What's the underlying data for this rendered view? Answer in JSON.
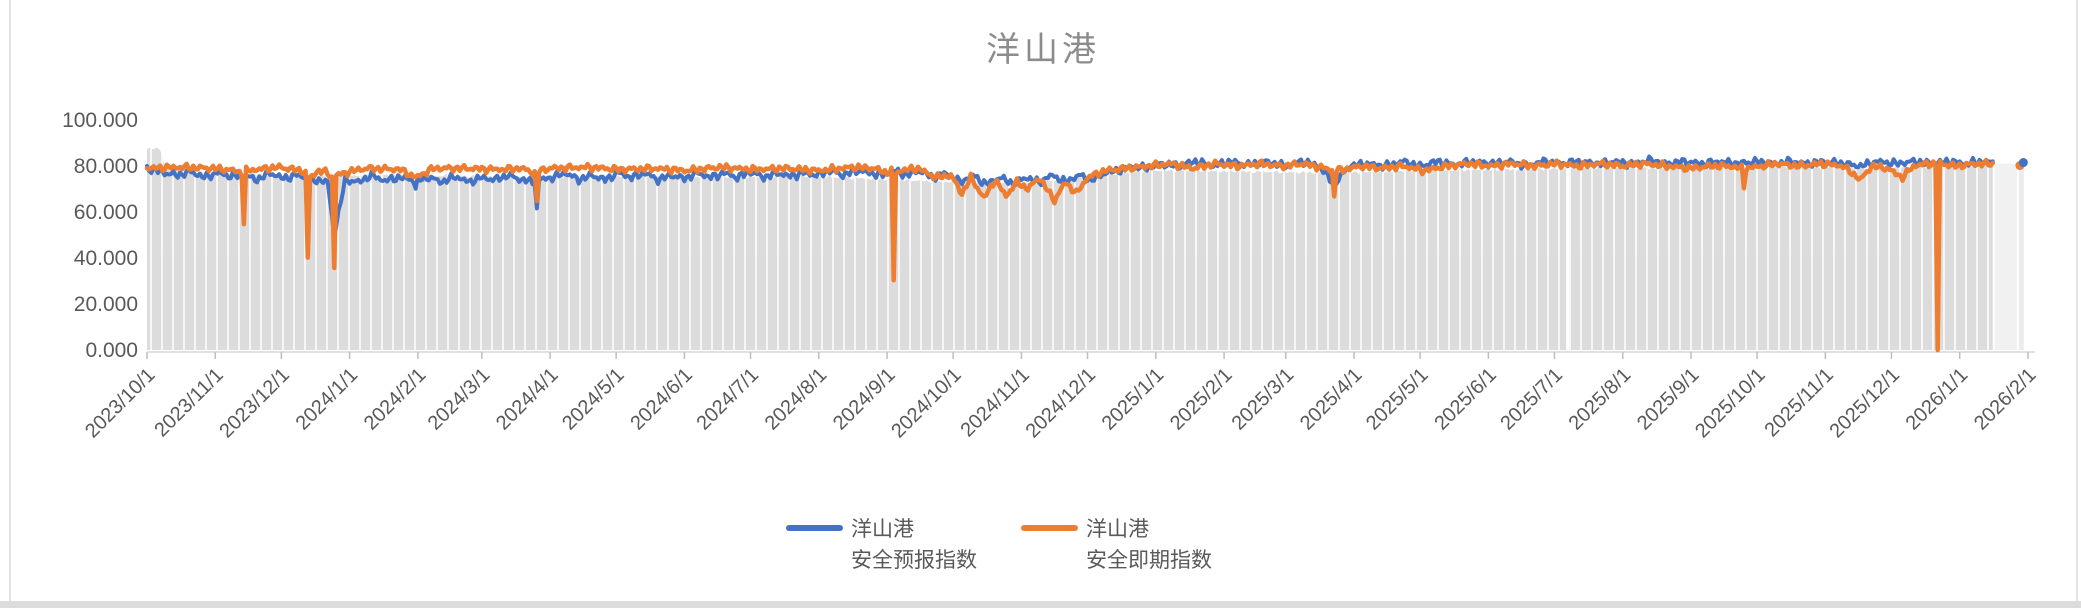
{
  "title": "洋山港",
  "legend": {
    "items": [
      {
        "line1": "洋山港",
        "line2": "安全预报指数",
        "color": "#4472C4"
      },
      {
        "line1": "洋山港",
        "line2": "安全即期指数",
        "color": "#ED7D31"
      }
    ]
  },
  "chart_data": {
    "type": "line",
    "title": "洋山港",
    "xlabel": "",
    "ylabel": "",
    "ylim": [
      0,
      100
    ],
    "grid": "none",
    "legend_position": "bottom",
    "y_axis": {
      "ticks": [
        {
          "label": "100.000",
          "value": 100
        },
        {
          "label": "80.000",
          "value": 80
        },
        {
          "label": "60.000",
          "value": 60
        },
        {
          "label": "40.000",
          "value": 40
        },
        {
          "label": "20.000",
          "value": 20
        },
        {
          "label": "0.000",
          "value": 0
        }
      ]
    },
    "x_axis": {
      "start_date": "2023/10/1",
      "end_date": "2026/2/1",
      "total_days": 854,
      "tick_days": [
        0,
        31,
        61,
        92,
        123,
        152,
        183,
        213,
        244,
        274,
        305,
        336,
        366,
        397,
        427,
        458,
        489,
        517,
        548,
        578,
        609,
        639,
        670,
        701,
        731,
        762,
        792,
        823,
        854
      ],
      "tick_labels": [
        "2023/10/1",
        "2023/11/1",
        "2023/12/1",
        "2024/1/1",
        "2024/2/1",
        "2024/3/1",
        "2024/4/1",
        "2024/5/1",
        "2024/6/1",
        "2024/7/1",
        "2024/8/1",
        "2024/9/1",
        "2024/10/1",
        "2024/11/1",
        "2024/12/1",
        "2025/1/1",
        "2025/2/1",
        "2025/3/1",
        "2025/4/1",
        "2025/5/1",
        "2025/6/1",
        "2025/7/1",
        "2025/8/1",
        "2025/9/1",
        "2025/10/1",
        "2025/11/1",
        "2025/12/1",
        "2026/1/1",
        "2026/2/1"
      ]
    },
    "colors": {
      "forecast_blue": "#4472C4",
      "spot_orange": "#ED7D31",
      "band_gray": "#dcdcdc",
      "band_light": "#f1f1f1",
      "axis_line": "#d6d6d6",
      "tick_mark": "#bfbfbf",
      "label_text": "#595959",
      "title_text": "#8c8c8c"
    },
    "series": [
      {
        "name": "洋山港 安全预报指数",
        "color": "#4472C4",
        "last_day": 838,
        "noise_amp": 1.7,
        "points": [
          [
            0,
            79
          ],
          [
            8,
            77
          ],
          [
            14,
            76
          ],
          [
            20,
            77.5
          ],
          [
            26,
            75
          ],
          [
            32,
            77
          ],
          [
            38,
            75.5
          ],
          [
            44,
            76
          ],
          [
            50,
            74
          ],
          [
            56,
            77
          ],
          [
            62,
            74.5
          ],
          [
            68,
            76
          ],
          [
            72,
            75
          ],
          [
            73,
            47
          ],
          [
            74,
            73
          ],
          [
            78,
            74
          ],
          [
            82,
            73
          ],
          [
            85,
            50
          ],
          [
            90,
            74
          ],
          [
            96,
            73
          ],
          [
            102,
            76
          ],
          [
            108,
            73.5
          ],
          [
            114,
            75
          ],
          [
            121,
            74
          ],
          [
            122,
            70
          ],
          [
            123,
            74
          ],
          [
            128,
            75
          ],
          [
            134,
            73
          ],
          [
            140,
            75.5
          ],
          [
            146,
            73
          ],
          [
            152,
            75
          ],
          [
            158,
            74
          ],
          [
            164,
            76
          ],
          [
            170,
            74
          ],
          [
            176,
            73
          ],
          [
            177,
            61
          ],
          [
            178,
            74
          ],
          [
            184,
            75
          ],
          [
            190,
            77
          ],
          [
            196,
            74
          ],
          [
            202,
            76
          ],
          [
            208,
            74
          ],
          [
            214,
            77
          ],
          [
            220,
            75
          ],
          [
            226,
            77
          ],
          [
            232,
            74
          ],
          [
            238,
            76
          ],
          [
            244,
            74.5
          ],
          [
            250,
            77
          ],
          [
            256,
            75
          ],
          [
            262,
            77
          ],
          [
            268,
            75
          ],
          [
            274,
            77.5
          ],
          [
            280,
            75
          ],
          [
            286,
            77
          ],
          [
            292,
            75.5
          ],
          [
            298,
            77
          ],
          [
            304,
            76
          ],
          [
            310,
            78
          ],
          [
            316,
            76
          ],
          [
            322,
            78
          ],
          [
            328,
            77
          ],
          [
            334,
            76
          ],
          [
            339,
            78
          ],
          [
            345,
            76
          ],
          [
            351,
            78
          ],
          [
            357,
            75
          ],
          [
            363,
            77
          ],
          [
            369,
            73
          ],
          [
            375,
            76
          ],
          [
            381,
            72
          ],
          [
            387,
            75
          ],
          [
            393,
            72.5
          ],
          [
            399,
            75
          ],
          [
            405,
            73
          ],
          [
            411,
            76
          ],
          [
            417,
            73
          ],
          [
            423,
            76
          ],
          [
            429,
            74
          ],
          [
            435,
            77
          ],
          [
            441,
            78
          ],
          [
            447,
            80
          ],
          [
            453,
            79
          ],
          [
            460,
            81
          ],
          [
            468,
            80
          ],
          [
            476,
            82
          ],
          [
            484,
            80
          ],
          [
            492,
            82
          ],
          [
            500,
            80.5
          ],
          [
            508,
            82
          ],
          [
            516,
            80
          ],
          [
            524,
            82
          ],
          [
            532,
            80
          ],
          [
            539,
            72
          ],
          [
            546,
            80
          ],
          [
            554,
            81
          ],
          [
            562,
            80
          ],
          [
            570,
            82
          ],
          [
            578,
            80
          ],
          [
            586,
            82
          ],
          [
            594,
            80.5
          ],
          [
            602,
            82
          ],
          [
            610,
            81
          ],
          [
            618,
            82
          ],
          [
            626,
            80
          ],
          [
            634,
            82
          ],
          [
            642,
            81
          ],
          [
            650,
            82
          ],
          [
            658,
            81
          ],
          [
            666,
            82
          ],
          [
            674,
            81
          ],
          [
            682,
            82.5
          ],
          [
            690,
            81
          ],
          [
            698,
            82
          ],
          [
            706,
            81
          ],
          [
            714,
            82
          ],
          [
            722,
            81
          ],
          [
            730,
            82
          ],
          [
            738,
            81
          ],
          [
            746,
            82
          ],
          [
            754,
            81
          ],
          [
            762,
            82
          ],
          [
            770,
            81
          ],
          [
            778,
            80
          ],
          [
            786,
            82
          ],
          [
            794,
            81
          ],
          [
            802,
            82
          ],
          [
            810,
            81
          ],
          [
            818,
            82
          ],
          [
            826,
            81
          ],
          [
            832,
            82
          ],
          [
            838,
            81.5
          ]
        ]
      },
      {
        "name": "洋山港 安全即期指数",
        "color": "#ED7D31",
        "last_day": 838,
        "noise_amp": 1.5,
        "points": [
          [
            0,
            79
          ],
          [
            15,
            79.5
          ],
          [
            30,
            79
          ],
          [
            40,
            78
          ],
          [
            43,
            77
          ],
          [
            44,
            55
          ],
          [
            45,
            78
          ],
          [
            60,
            79.5
          ],
          [
            70,
            78
          ],
          [
            72,
            77
          ],
          [
            73,
            40
          ],
          [
            74,
            75
          ],
          [
            78,
            78
          ],
          [
            82,
            77
          ],
          [
            84,
            75
          ],
          [
            85,
            36
          ],
          [
            86,
            76
          ],
          [
            94,
            78
          ],
          [
            100,
            79
          ],
          [
            115,
            78.5
          ],
          [
            122,
            75
          ],
          [
            130,
            79
          ],
          [
            145,
            79
          ],
          [
            160,
            78.5
          ],
          [
            170,
            79
          ],
          [
            176,
            77
          ],
          [
            177,
            64
          ],
          [
            178,
            78
          ],
          [
            183,
            79
          ],
          [
            200,
            79.5
          ],
          [
            215,
            78.5
          ],
          [
            230,
            79
          ],
          [
            245,
            78
          ],
          [
            260,
            79.5
          ],
          [
            275,
            78.5
          ],
          [
            290,
            79
          ],
          [
            305,
            78
          ],
          [
            320,
            79.5
          ],
          [
            330,
            79
          ],
          [
            336,
            77
          ],
          [
            338,
            78
          ],
          [
            339,
            30
          ],
          [
            340,
            77
          ],
          [
            342,
            78
          ],
          [
            350,
            79
          ],
          [
            358,
            75
          ],
          [
            365,
            76
          ],
          [
            370,
            68
          ],
          [
            374,
            75
          ],
          [
            380,
            66
          ],
          [
            385,
            74
          ],
          [
            390,
            67
          ],
          [
            395,
            73
          ],
          [
            400,
            70
          ],
          [
            405,
            75
          ],
          [
            412,
            65
          ],
          [
            417,
            73
          ],
          [
            422,
            68
          ],
          [
            427,
            75
          ],
          [
            435,
            78
          ],
          [
            445,
            79
          ],
          [
            455,
            80
          ],
          [
            465,
            81
          ],
          [
            475,
            79
          ],
          [
            485,
            81
          ],
          [
            495,
            80
          ],
          [
            505,
            81
          ],
          [
            515,
            80
          ],
          [
            525,
            81
          ],
          [
            535,
            79
          ],
          [
            538,
            78
          ],
          [
            539,
            67
          ],
          [
            540,
            78
          ],
          [
            552,
            80
          ],
          [
            560,
            79
          ],
          [
            570,
            80
          ],
          [
            580,
            78
          ],
          [
            590,
            80
          ],
          [
            600,
            81
          ],
          [
            610,
            80
          ],
          [
            620,
            81
          ],
          [
            630,
            80
          ],
          [
            640,
            81
          ],
          [
            650,
            80
          ],
          [
            660,
            81
          ],
          [
            670,
            80
          ],
          [
            680,
            81
          ],
          [
            690,
            80
          ],
          [
            700,
            79
          ],
          [
            710,
            80
          ],
          [
            718,
            80
          ],
          [
            724,
            79
          ],
          [
            725,
            71
          ],
          [
            726,
            79
          ],
          [
            740,
            81
          ],
          [
            750,
            80
          ],
          [
            760,
            81
          ],
          [
            770,
            80
          ],
          [
            778,
            74
          ],
          [
            783,
            80
          ],
          [
            790,
            79
          ],
          [
            797,
            75
          ],
          [
            802,
            80
          ],
          [
            808,
            81
          ],
          [
            811,
            81
          ],
          [
            812,
            81
          ],
          [
            813,
            0
          ],
          [
            814,
            81
          ],
          [
            822,
            80
          ],
          [
            830,
            81
          ],
          [
            838,
            81
          ]
        ]
      }
    ],
    "background_band": {
      "color": "#dcdcdc",
      "stripe_color": "#ffffff",
      "stripe_spacing_px": 11,
      "noise_amp": 0.7,
      "last_day": 838,
      "points": [
        [
          0,
          87.5
        ],
        [
          6,
          87.5
        ],
        [
          8,
          80
        ],
        [
          20,
          77
        ],
        [
          50,
          76
        ],
        [
          80,
          75.5
        ],
        [
          110,
          76
        ],
        [
          150,
          75.5
        ],
        [
          180,
          75
        ],
        [
          220,
          75.5
        ],
        [
          260,
          75
        ],
        [
          300,
          75.5
        ],
        [
          340,
          74
        ],
        [
          365,
          73
        ],
        [
          400,
          72.5
        ],
        [
          430,
          76
        ],
        [
          460,
          78
        ],
        [
          500,
          77.5
        ],
        [
          540,
          77
        ],
        [
          580,
          78
        ],
        [
          620,
          78.5
        ],
        [
          660,
          79
        ],
        [
          700,
          79
        ],
        [
          740,
          79.5
        ],
        [
          780,
          79
        ],
        [
          813,
          79.5
        ],
        [
          838,
          80.5
        ]
      ],
      "gap_days": [
        645
      ],
      "light_tail": {
        "start_day": 838,
        "end_day": 849,
        "top_value": 81,
        "color": "#f1f1f1"
      },
      "isolated_point": {
        "day": 851,
        "forecast_value": 81.5,
        "spot_value": 80.2,
        "bar_color": "#ececec"
      }
    }
  }
}
